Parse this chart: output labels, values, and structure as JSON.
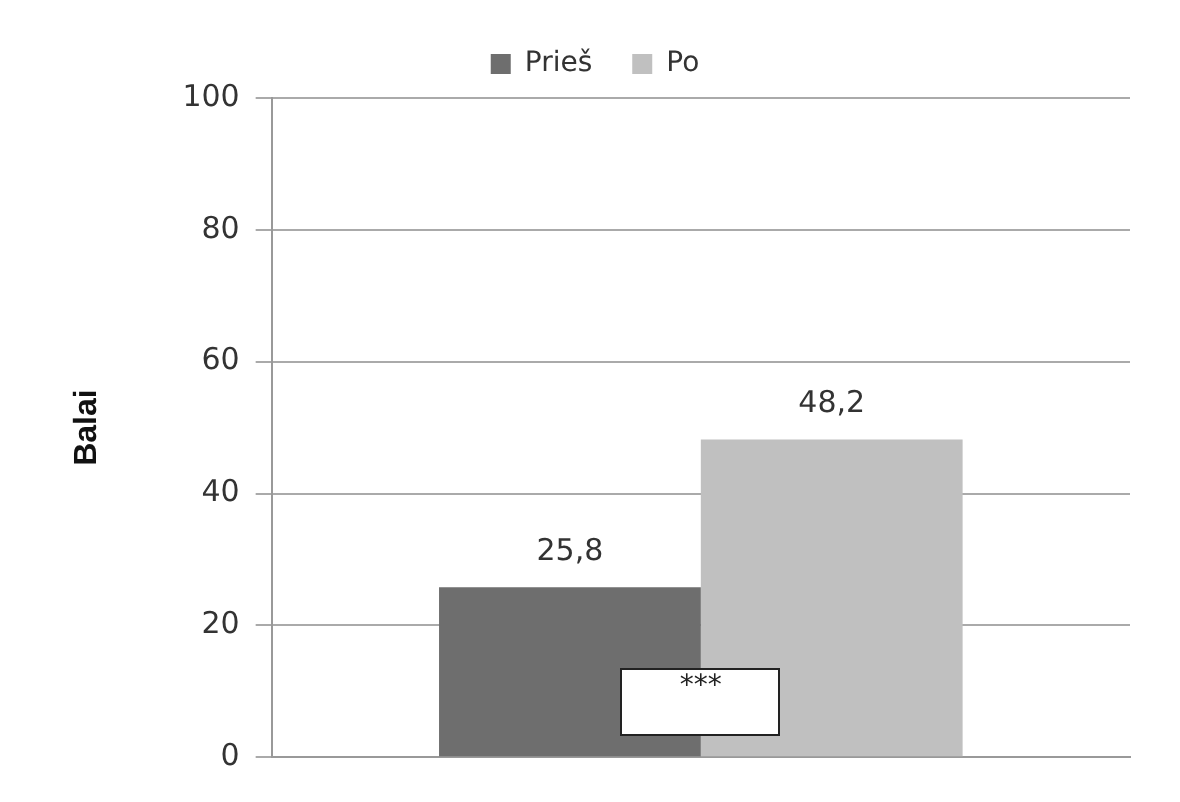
{
  "chart_data": {
    "type": "bar",
    "ylabel": "Balai",
    "categories": [
      null
    ],
    "series": [
      {
        "name": "Prieš",
        "color": "#6e6e6e",
        "values": [
          25.8
        ],
        "value_labels": [
          "25,8"
        ]
      },
      {
        "name": "Po",
        "color": "#c0c0c0",
        "values": [
          48.2
        ],
        "value_labels": [
          "48,2"
        ]
      }
    ],
    "ylim": [
      0,
      100
    ],
    "yticks": [
      0,
      20,
      40,
      60,
      80,
      100
    ],
    "grid": "y",
    "legend": "top",
    "annotations": [
      "***"
    ]
  }
}
